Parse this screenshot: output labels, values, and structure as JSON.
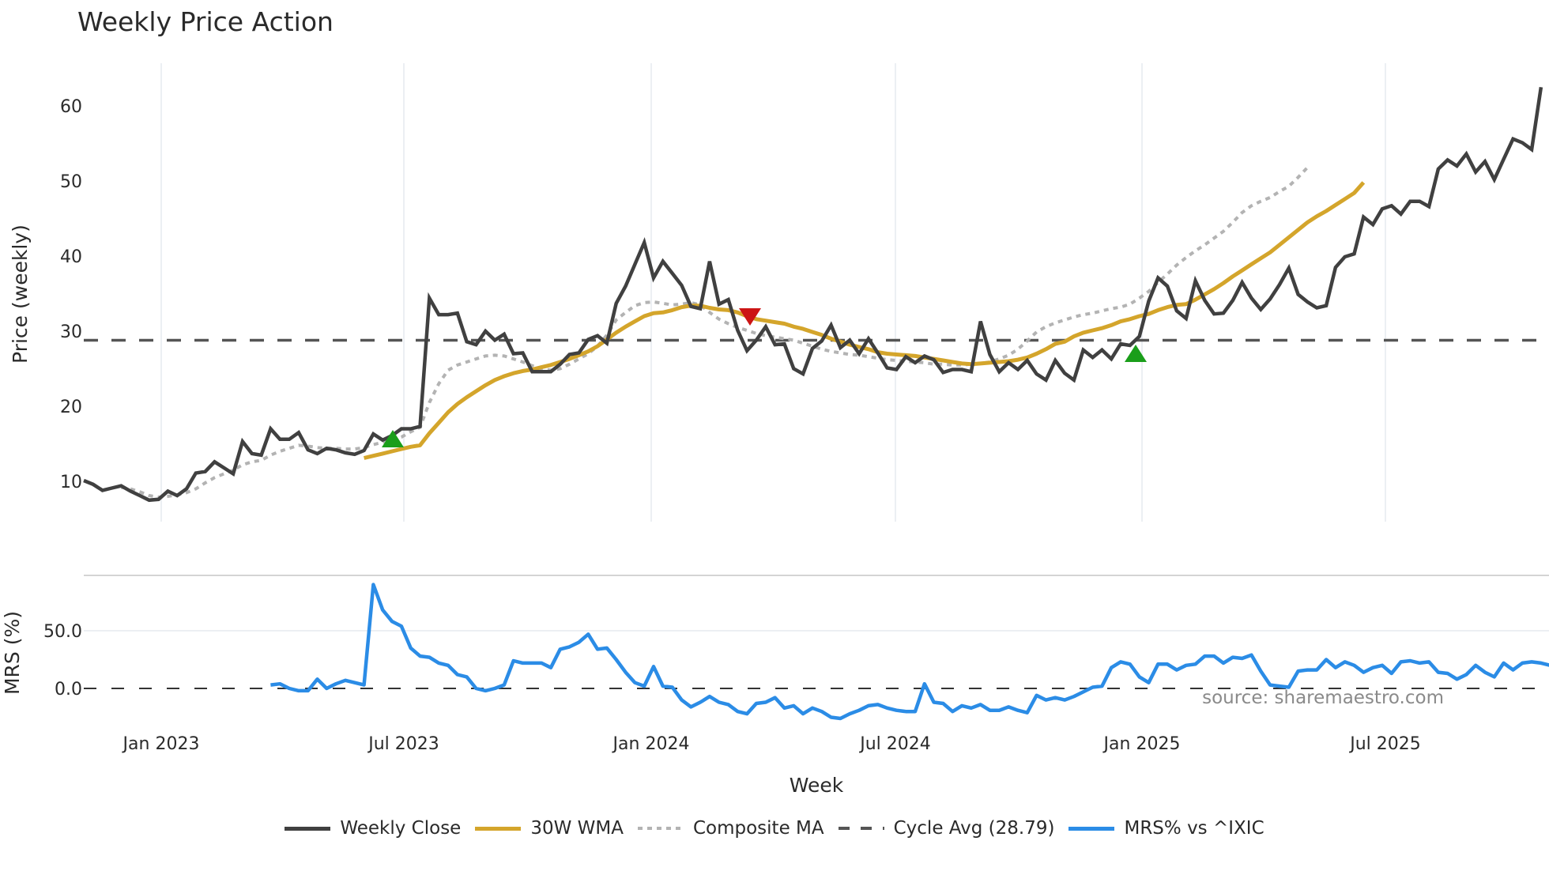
{
  "title": "Weekly Price Action",
  "source_note": "source: sharemaestro.com",
  "colors": {
    "close": "#404040",
    "wma": "#d4a52b",
    "composite": "#b3b3b3",
    "cycle": "#555555",
    "mrs": "#2b8ce6",
    "buy_marker": "#1a9e1a",
    "sell_marker": "#cc1515",
    "grid": "#eceff3"
  },
  "legend": [
    {
      "key": "close",
      "label": "Weekly Close",
      "style": "solid"
    },
    {
      "key": "wma",
      "label": "30W WMA",
      "style": "solid"
    },
    {
      "key": "composite",
      "label": "Composite MA",
      "style": "dotted"
    },
    {
      "key": "cycle",
      "label": "Cycle Avg (28.79)",
      "style": "dashed"
    },
    {
      "key": "mrs",
      "label": "MRS% vs ^IXIC",
      "style": "solid"
    }
  ],
  "chart_data": [
    {
      "type": "line",
      "title": "Weekly Price Action",
      "xlabel": "Week",
      "ylabel": "Price (weekly)",
      "x_tick_labels": [
        "Jan 2023",
        "Jul 2023",
        "Jan 2024",
        "Jul 2024",
        "Jan 2025",
        "Jul 2025"
      ],
      "y_ticks": [
        10,
        20,
        30,
        40,
        50,
        60
      ],
      "ylim": [
        5,
        66
      ],
      "grid": "vertical",
      "legend_position": "bottom",
      "start_week": "2022-11",
      "series": [
        {
          "name": "Weekly Close",
          "values": [
            10.1,
            9.6,
            8.8,
            9.1,
            9.4,
            8.7,
            8.1,
            7.5,
            7.6,
            8.7,
            8.1,
            9.0,
            11.1,
            11.3,
            12.6,
            11.8,
            11.0,
            15.3,
            13.7,
            13.5,
            17.0,
            15.6,
            15.6,
            16.5,
            14.2,
            13.7,
            14.4,
            14.2,
            13.8,
            13.6,
            14.1,
            16.3,
            15.5,
            16.1,
            17.0,
            17.0,
            17.3,
            34.4,
            32.2,
            32.2,
            32.4,
            28.6,
            28.2,
            30.0,
            28.8,
            29.6,
            27.0,
            27.1,
            24.6,
            24.6,
            24.6,
            25.6,
            26.9,
            27.1,
            28.9,
            29.4,
            28.4,
            33.7,
            36.0,
            38.9,
            41.8,
            37.1,
            39.3,
            37.7,
            36.1,
            33.3,
            33.0,
            39.3,
            33.6,
            34.2,
            30.1,
            27.4,
            28.8,
            30.6,
            28.2,
            28.3,
            25.0,
            24.3,
            27.7,
            28.7,
            30.8,
            27.8,
            28.8,
            27.0,
            29.0,
            27.1,
            25.1,
            24.9,
            26.6,
            25.8,
            26.7,
            26.2,
            24.5,
            24.9,
            24.9,
            24.6,
            31.3,
            26.9,
            24.6,
            25.8,
            24.9,
            26.1,
            24.3,
            23.5,
            26.1,
            24.4,
            23.5,
            27.5,
            26.5,
            27.5,
            26.3,
            28.3,
            28.1,
            29.3,
            34.0,
            37.1,
            36.0,
            32.7,
            31.7,
            36.7,
            34.1,
            32.3,
            32.4,
            34.1,
            36.5,
            34.4,
            32.9,
            34.3,
            36.2,
            38.4,
            34.9,
            33.9,
            33.1,
            33.4,
            38.5,
            39.9,
            40.3,
            45.2,
            44.2,
            46.3,
            46.7,
            45.6,
            47.3,
            47.3,
            46.6,
            51.6,
            52.8,
            52.0,
            53.6,
            51.2,
            52.6,
            50.2,
            52.9,
            55.6,
            55.1,
            54.2,
            62.5
          ]
        },
        {
          "name": "30W WMA",
          "values": [
            null,
            null,
            null,
            null,
            null,
            null,
            null,
            null,
            null,
            null,
            null,
            null,
            null,
            null,
            null,
            null,
            null,
            null,
            null,
            null,
            null,
            null,
            null,
            null,
            null,
            null,
            null,
            null,
            null,
            null,
            13.1,
            13.4,
            13.7,
            14.0,
            14.3,
            14.6,
            14.8,
            16.4,
            17.8,
            19.2,
            20.3,
            21.2,
            22.0,
            22.8,
            23.5,
            24.0,
            24.4,
            24.7,
            24.9,
            25.2,
            25.5,
            25.9,
            26.3,
            26.8,
            27.3,
            28.0,
            28.9,
            29.8,
            30.6,
            31.3,
            32.0,
            32.4,
            32.5,
            32.8,
            33.2,
            33.4,
            33.4,
            33.1,
            32.9,
            32.8,
            32.5,
            32.0,
            31.6,
            31.4,
            31.2,
            31.0,
            30.6,
            30.3,
            29.9,
            29.5,
            29.0,
            28.6,
            28.2,
            27.9,
            27.6,
            27.2,
            27.0,
            26.9,
            26.8,
            26.7,
            26.5,
            26.3,
            26.1,
            25.9,
            25.7,
            25.6,
            25.7,
            25.8,
            25.9,
            26.0,
            26.2,
            26.5,
            27.0,
            27.6,
            28.3,
            28.6,
            29.3,
            29.8,
            30.1,
            30.4,
            30.8,
            31.3,
            31.6,
            32.0,
            32.3,
            32.8,
            33.2,
            33.5,
            33.6,
            34.2,
            34.9,
            35.6,
            36.4,
            37.3,
            38.1,
            38.9,
            39.7,
            40.5,
            41.5,
            42.5,
            43.5,
            44.5,
            45.3,
            46.0,
            46.8,
            47.6,
            48.4,
            49.8
          ]
        },
        {
          "name": "Composite MA",
          "values": [
            null,
            null,
            null,
            null,
            9.2,
            9.0,
            8.6,
            8.1,
            7.9,
            8.0,
            8.2,
            8.5,
            9.0,
            9.8,
            10.5,
            11.0,
            11.5,
            12.2,
            12.6,
            12.8,
            13.5,
            14.0,
            14.4,
            14.8,
            14.7,
            14.5,
            14.4,
            14.4,
            14.3,
            14.3,
            14.5,
            14.9,
            15.2,
            15.5,
            15.9,
            16.6,
            17.2,
            20.5,
            23.0,
            24.8,
            25.5,
            25.9,
            26.3,
            26.7,
            26.8,
            26.7,
            26.3,
            25.9,
            25.4,
            25.0,
            24.8,
            25.0,
            25.6,
            26.3,
            27.0,
            28.0,
            29.5,
            31.5,
            32.5,
            33.4,
            33.8,
            33.9,
            33.7,
            33.5,
            33.6,
            33.8,
            33.5,
            32.5,
            31.6,
            31.0,
            30.5,
            30.1,
            29.7,
            29.4,
            29.2,
            29.0,
            28.8,
            28.4,
            28.0,
            27.6,
            27.3,
            27.1,
            26.9,
            26.8,
            26.6,
            26.4,
            26.2,
            26.1,
            26.0,
            25.9,
            25.8,
            25.6,
            25.6,
            25.5,
            25.5,
            25.6,
            25.7,
            25.9,
            26.3,
            26.8,
            27.6,
            28.7,
            29.9,
            30.6,
            31.1,
            31.5,
            31.9,
            32.2,
            32.4,
            32.7,
            33.0,
            33.2,
            33.6,
            34.4,
            35.3,
            36.5,
            37.6,
            38.8,
            39.8,
            40.7,
            41.5,
            42.4,
            43.3,
            44.5,
            45.8,
            46.7,
            47.3,
            47.8,
            48.6,
            49.3,
            50.5,
            51.8
          ]
        },
        {
          "name": "Cycle Avg (28.79)",
          "values": [
            28.79
          ],
          "constant": true
        },
        {
          "name": "MRS% vs ^IXIC",
          "panel": "lower",
          "ylabel": "MRS (%)",
          "y_ticks": [
            0.0,
            50.0
          ],
          "ylim": [
            -30,
            92
          ],
          "start_index": 20,
          "values": [
            3,
            4,
            0,
            -2,
            -2,
            8,
            0,
            4,
            7,
            5,
            3,
            90,
            68,
            58,
            54,
            35,
            28,
            27,
            22,
            20,
            12,
            10,
            0,
            -2,
            0,
            3,
            24,
            22,
            22,
            22,
            18,
            34,
            36,
            40,
            47,
            34,
            35,
            25,
            14,
            5,
            2,
            19,
            2,
            1,
            -10,
            -16,
            -12,
            -7,
            -12,
            -14,
            -20,
            -22,
            -13,
            -12,
            -8,
            -17,
            -15,
            -22,
            -17,
            -20,
            -25,
            -26,
            -22,
            -19,
            -15,
            -14,
            -17,
            -19,
            -20,
            -20,
            4,
            -12,
            -13,
            -20,
            -15,
            -17,
            -14,
            -19,
            -19,
            -16,
            -19,
            -21,
            -6,
            -10,
            -8,
            -10,
            -7,
            -3,
            1,
            2,
            18,
            23,
            21,
            10,
            5,
            21,
            21,
            16,
            20,
            21,
            28,
            28,
            22,
            27,
            26,
            29,
            15,
            3,
            2,
            1,
            15,
            16,
            16,
            25,
            18,
            23,
            20,
            14,
            18,
            20,
            13,
            23,
            24,
            22,
            23,
            14,
            13,
            8,
            12,
            20,
            14,
            10,
            22,
            16,
            22,
            23,
            22,
            20,
            19,
            15,
            17,
            15,
            22,
            20
          ]
        }
      ],
      "markers": [
        {
          "type": "buy",
          "shape": "triangle-up",
          "x_label": "Jun 2023",
          "y": 15.5
        },
        {
          "type": "sell",
          "shape": "triangle-down",
          "x_label": "Apr 2024",
          "y": 31.5
        },
        {
          "type": "buy",
          "shape": "triangle-up",
          "x_label": "Dec 2024",
          "y": 27.0
        }
      ]
    }
  ],
  "axes": {
    "price_ylabel": "Price (weekly)",
    "mrs_ylabel": "MRS (%)",
    "xlabel": "Week",
    "price_ticks": [
      "60",
      "50",
      "40",
      "30",
      "20",
      "10"
    ],
    "mrs_ticks": [
      "50.0",
      "0.0"
    ],
    "x_ticks": [
      "Jan 2023",
      "Jul 2023",
      "Jan 2024",
      "Jul 2024",
      "Jan 2025",
      "Jul 2025"
    ]
  }
}
